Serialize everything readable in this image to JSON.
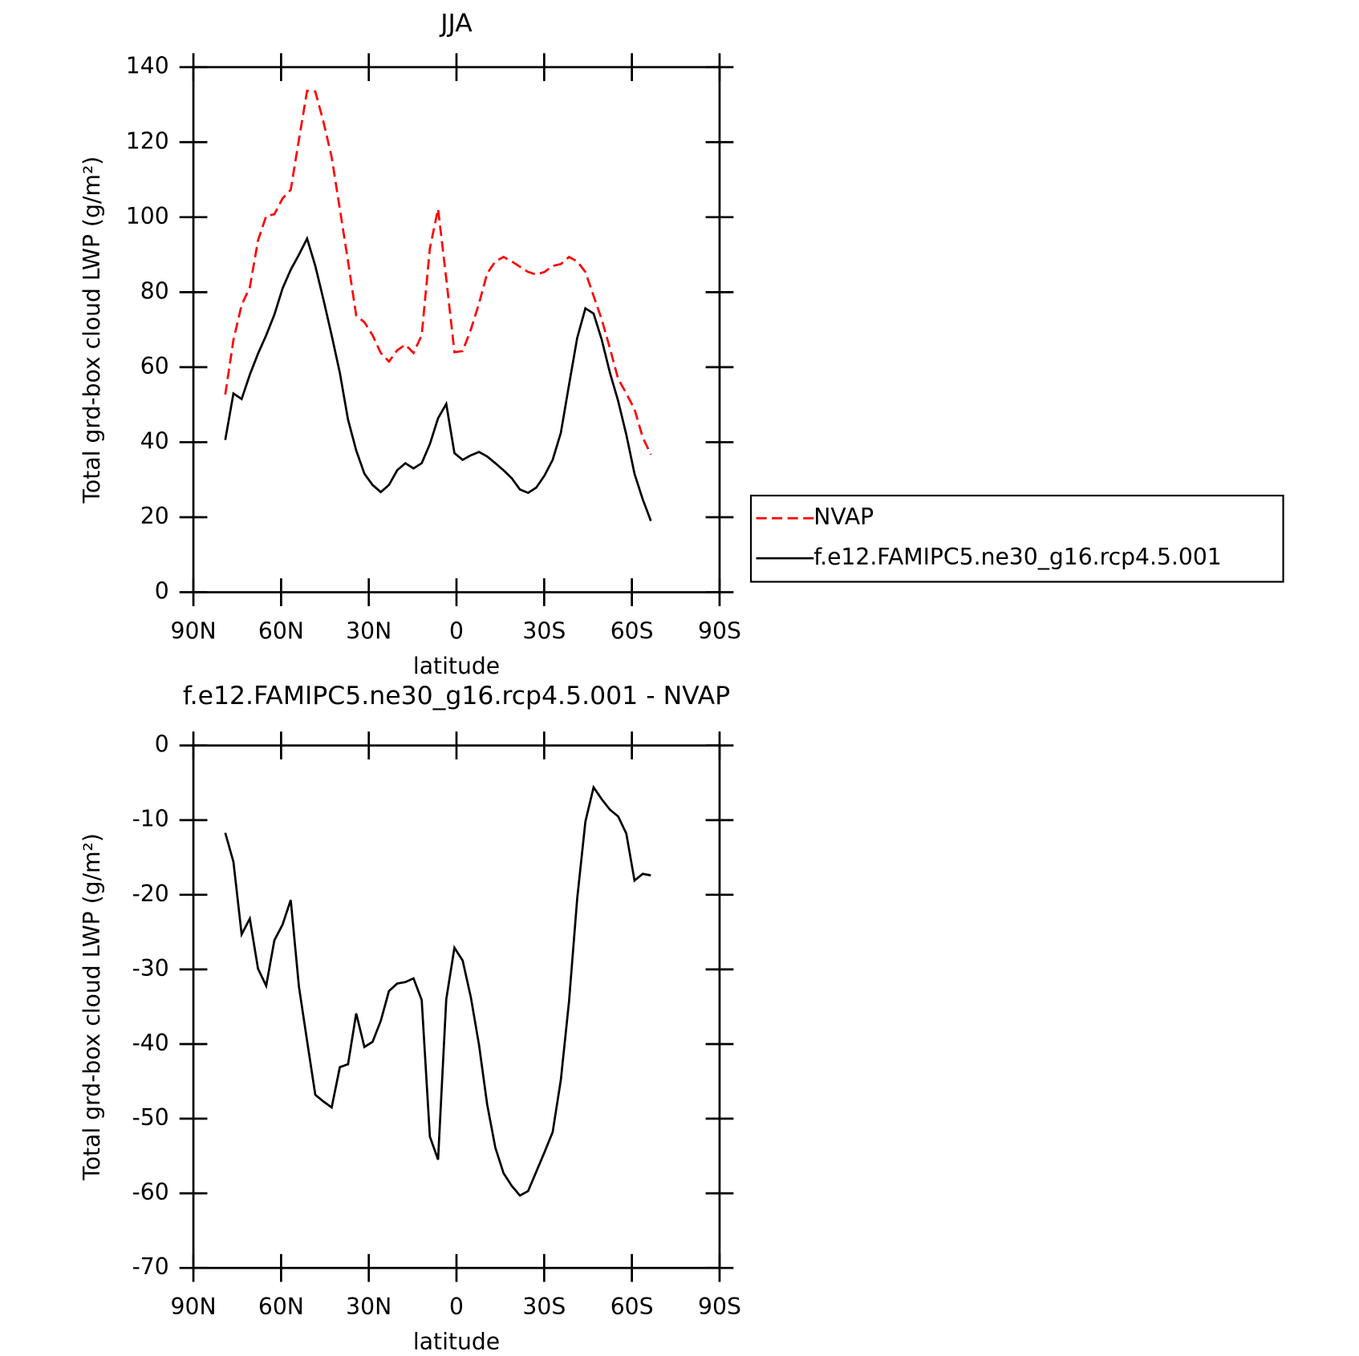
{
  "chart_data": [
    {
      "type": "line",
      "title": "JJA",
      "xlabel": "latitude",
      "ylabel": "Total grd-box cloud LWP (g/m²)",
      "x": [
        79.1,
        76.3,
        73.5,
        70.7,
        67.9,
        65.1,
        62.3,
        59.5,
        56.7,
        53.9,
        51.1,
        48.3,
        45.5,
        42.7,
        39.9,
        37.1,
        34.3,
        31.5,
        28.7,
        25.9,
        23.1,
        20.3,
        17.5,
        14.7,
        11.9,
        9.1,
        6.3,
        3.5,
        0.7,
        -2.1,
        -4.9,
        -7.7,
        -10.5,
        -13.3,
        -16.1,
        -18.9,
        -21.7,
        -24.5,
        -27.3,
        -30.1,
        -32.9,
        -35.7,
        -38.5,
        -41.3,
        -44.1,
        -46.9,
        -49.7,
        -52.5,
        -55.3,
        -58.1,
        -60.9,
        -63.7,
        -66.5
      ],
      "series": [
        {
          "name": "NVAP",
          "color": "#ff0000",
          "dash": true,
          "values": [
            52.7,
            67.3,
            76.6,
            81.3,
            93.8,
            100.3,
            100.8,
            105,
            107.3,
            120.7,
            133.7,
            133.5,
            125.4,
            116,
            102.2,
            88.2,
            73.8,
            72,
            68.5,
            63.8,
            61.5,
            64.5,
            66,
            63.8,
            68.5,
            91.7,
            102.2,
            83.6,
            64,
            64.3,
            70,
            77,
            85,
            88.2,
            89.4,
            88.2,
            86.8,
            85.4,
            84.7,
            85.4,
            87,
            87.5,
            89.4,
            88.2,
            85.4,
            79,
            72.7,
            65,
            56.9,
            53,
            48.8,
            41.3,
            36.7
          ]
        },
        {
          "name": "f.e12.FAMIPC5.ne30_g16.rcp4.5.001",
          "color": "#000000",
          "dash": false,
          "values": [
            40.6,
            53,
            51.5,
            58,
            63.6,
            68.5,
            74,
            81,
            86,
            90,
            94.3,
            87,
            78,
            68.5,
            58.5,
            46,
            37.8,
            31.6,
            28.6,
            26.7,
            28.6,
            32.5,
            34.4,
            33,
            34.4,
            39.5,
            46.4,
            50.2,
            37.1,
            35.3,
            36.5,
            37.4,
            36.2,
            34.4,
            32.5,
            30.4,
            27.4,
            26.5,
            27.9,
            31.1,
            35.3,
            42.5,
            55.3,
            67.8,
            75.7,
            74.3,
            67.3,
            58.5,
            51,
            42,
            31.6,
            24.8,
            19
          ]
        }
      ],
      "xlim": [
        90,
        -90
      ],
      "xticks": [
        {
          "value": 90,
          "label": "90N"
        },
        {
          "value": 60,
          "label": "60N"
        },
        {
          "value": 30,
          "label": "30N"
        },
        0,
        {
          "value": -30,
          "label": "30S"
        },
        {
          "value": -60,
          "label": "60S"
        },
        {
          "value": -90,
          "label": "90S"
        }
      ],
      "ylim": [
        0,
        140
      ],
      "yticks": [
        0,
        20,
        40,
        60,
        80,
        100,
        120,
        140
      ],
      "legend": "right"
    },
    {
      "type": "line",
      "title": "f.e12.FAMIPC5.ne30_g16.rcp4.5.001 - NVAP",
      "xlabel": "latitude",
      "ylabel": "Total grd-box cloud LWP (g/m²)",
      "x": [
        79.1,
        76.3,
        73.5,
        70.7,
        67.9,
        65.1,
        62.3,
        59.5,
        56.7,
        53.9,
        51.1,
        48.3,
        45.5,
        42.7,
        39.9,
        37.1,
        34.3,
        31.5,
        28.7,
        25.9,
        23.1,
        20.3,
        17.5,
        14.7,
        11.9,
        9.1,
        6.3,
        3.5,
        0.7,
        -2.1,
        -4.9,
        -7.7,
        -10.5,
        -13.3,
        -16.1,
        -18.9,
        -21.7,
        -24.5,
        -27.3,
        -30.1,
        -32.9,
        -35.7,
        -38.5,
        -41.3,
        -44.1,
        -46.9,
        -49.7,
        -52.5,
        -55.3,
        -58.1,
        -60.9,
        -63.7,
        -66.5
      ],
      "series": [
        {
          "color": "#000000",
          "dash": false,
          "values": [
            -11.7,
            -15.6,
            -25.3,
            -23.2,
            -29.9,
            -32.2,
            -26.1,
            -24,
            -20.7,
            -32.3,
            -39.6,
            -46.8,
            -47.7,
            -48.5,
            -43.1,
            -42.7,
            -35.9,
            -40.4,
            -39.7,
            -36.9,
            -32.9,
            -31.9,
            -31.7,
            -31.2,
            -34.1,
            -52.4,
            -55.5,
            -34,
            -27.1,
            -28.8,
            -33.7,
            -40.1,
            -48.1,
            -53.9,
            -57.3,
            -59,
            -60.3,
            -59.7,
            -57.1,
            -54.5,
            -51.8,
            -44.8,
            -34.3,
            -20.5,
            -10.2,
            -5.6,
            -7.2,
            -8.6,
            -9.5,
            -11.8,
            -18.1,
            -17.2,
            -17.4
          ]
        }
      ],
      "xlim": [
        90,
        -90
      ],
      "xticks": [
        {
          "value": 90,
          "label": "90N"
        },
        {
          "value": 60,
          "label": "60N"
        },
        {
          "value": 30,
          "label": "30N"
        },
        0,
        {
          "value": -30,
          "label": "30S"
        },
        {
          "value": -60,
          "label": "60S"
        },
        {
          "value": -90,
          "label": "90S"
        }
      ],
      "ylim": [
        -70,
        0
      ],
      "yticks": [
        -70,
        -60,
        -50,
        -40,
        -30,
        -20,
        -10,
        0
      ]
    }
  ]
}
